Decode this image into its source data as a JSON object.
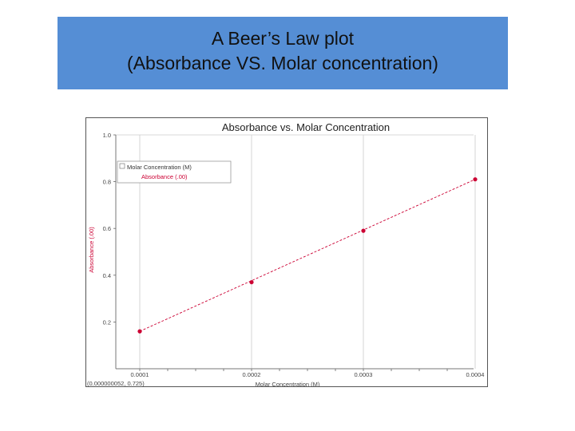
{
  "slide": {
    "title_line1": "A Beer’s Law plot",
    "title_line2": "(Absorbance VS. Molar concentration)",
    "banner_color": "#558ed5"
  },
  "chart_data": {
    "type": "scatter",
    "title": "Absorbance vs. Molar Concentration",
    "xlabel": "Molar Concentration (M)",
    "ylabel": "Absorbance (.00)",
    "xlim": [
      0,
      0.004
    ],
    "ylim": [
      0,
      1.0
    ],
    "x_tick_labels": [
      "0.0001",
      "0.0002",
      "0.0003",
      "0.0004"
    ],
    "y_tick_labels": [
      "0.2",
      "0.4",
      "0.6",
      "0.8",
      "1.0"
    ],
    "grid": true,
    "legend_placement": "top-left",
    "legend": {
      "line1": "Molar Concentration (M)",
      "line2": "Absorbance (.00)"
    },
    "status_readout": "(0.000000052, 0.725)",
    "series_color": "#cc0033",
    "series": [
      {
        "name": "Absorbance (.00)",
        "points": [
          {
            "x": 0.0001,
            "y": 0.16
          },
          {
            "x": 0.0002,
            "y": 0.37
          },
          {
            "x": 0.0003,
            "y": 0.59
          },
          {
            "x": 0.0004,
            "y": 0.81
          }
        ]
      }
    ]
  }
}
